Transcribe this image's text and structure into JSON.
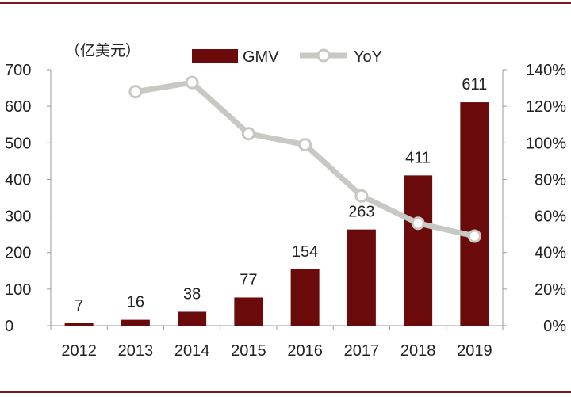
{
  "colors": {
    "bar": "#6b0a0a",
    "line": "#c8c8c4",
    "axis": "#9a9a9a",
    "frame": "#7a1a1a"
  },
  "chart_data": {
    "type": "bar",
    "unit_label": "（亿美元）",
    "categories": [
      "2012",
      "2013",
      "2014",
      "2015",
      "2016",
      "2017",
      "2018",
      "2019"
    ],
    "series": [
      {
        "name": "GMV",
        "type": "bar",
        "axis": "left",
        "values": [
          7,
          16,
          38,
          77,
          154,
          263,
          411,
          611
        ],
        "labels": [
          "7",
          "16",
          "38",
          "77",
          "154",
          "263",
          "411",
          "611"
        ]
      },
      {
        "name": "YoY",
        "type": "line",
        "axis": "right",
        "values": [
          null,
          128,
          133,
          105,
          99,
          71,
          56,
          49
        ]
      }
    ],
    "ylim": [
      0,
      700
    ],
    "yticks": [
      "0",
      "100",
      "200",
      "300",
      "400",
      "500",
      "600",
      "700"
    ],
    "y2lim": [
      0,
      140
    ],
    "y2ticks": [
      "0%",
      "20%",
      "40%",
      "60%",
      "80%",
      "100%",
      "120%",
      "140%"
    ],
    "legend": "top-center",
    "grid": false
  }
}
